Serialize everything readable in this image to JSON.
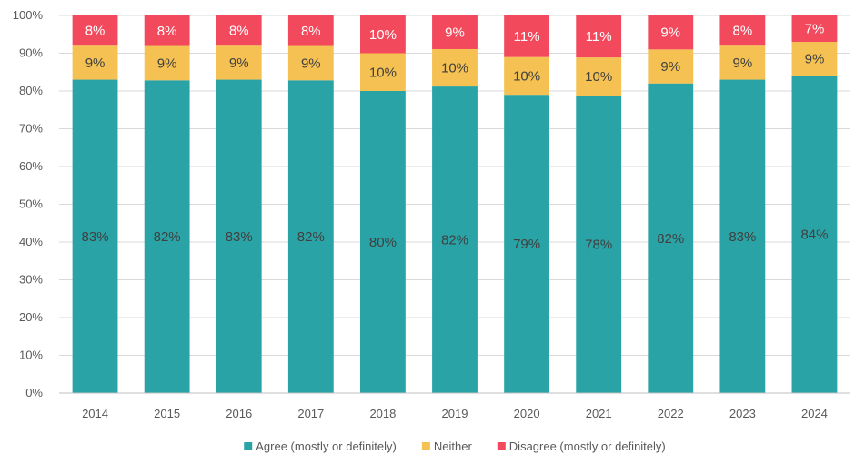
{
  "chart_data": {
    "type": "bar",
    "stacked": true,
    "percent_stacked": true,
    "categories": [
      "2014",
      "2015",
      "2016",
      "2017",
      "2018",
      "2019",
      "2020",
      "2021",
      "2022",
      "2023",
      "2024"
    ],
    "series": [
      {
        "name": "Agree (mostly or definitely)",
        "color": "#2aa3a6",
        "values": [
          83,
          82,
          83,
          82,
          80,
          82,
          79,
          78,
          82,
          83,
          84
        ],
        "labels": [
          "83%",
          "82%",
          "83%",
          "82%",
          "80%",
          "82%",
          "79%",
          "78%",
          "82%",
          "83%",
          "84%"
        ]
      },
      {
        "name": "Neither",
        "color": "#f4c152",
        "values": [
          9,
          9,
          9,
          9,
          10,
          10,
          10,
          10,
          9,
          9,
          9
        ],
        "labels": [
          "9%",
          "9%",
          "9%",
          "9%",
          "10%",
          "10%",
          "10%",
          "10%",
          "9%",
          "9%",
          "9%"
        ]
      },
      {
        "name": "Disagree (mostly or definitely)",
        "color": "#f2495c",
        "values": [
          8,
          8,
          8,
          8,
          10,
          9,
          11,
          11,
          9,
          8,
          7
        ],
        "labels": [
          "8%",
          "8%",
          "8%",
          "8%",
          "10%",
          "9%",
          "11%",
          "11%",
          "9%",
          "8%",
          "7%"
        ]
      }
    ],
    "yticks": [
      "0%",
      "10%",
      "20%",
      "30%",
      "40%",
      "50%",
      "60%",
      "70%",
      "80%",
      "90%",
      "100%"
    ],
    "ylim": [
      0,
      100
    ],
    "grid": true,
    "legend_position": "bottom",
    "title": "",
    "xlabel": "",
    "ylabel": ""
  }
}
